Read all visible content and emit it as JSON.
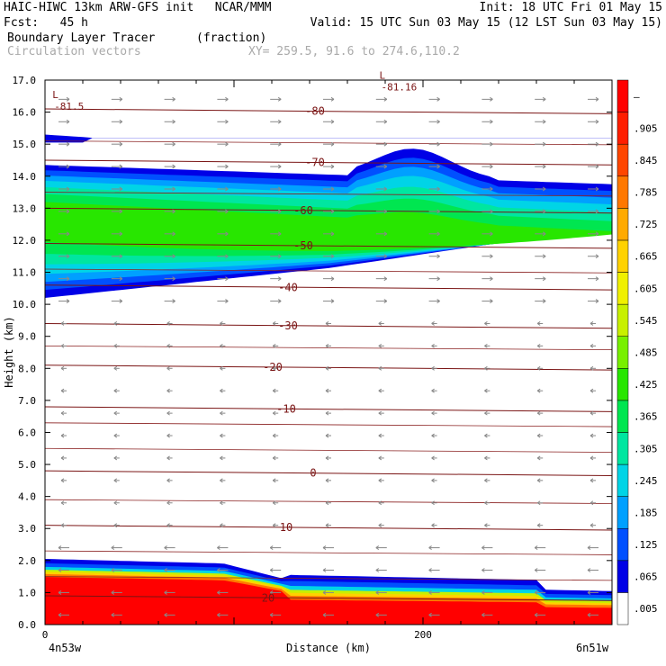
{
  "header": {
    "line1_left": "HAIC-HIWC 13km ARW-GFS init   NCAR/MMM",
    "line1_right": "Init: 18 UTC Fri 01 May 15",
    "line2_left": "Fcst:   45 h",
    "line2_right": "Valid: 15 UTC Sun 03 May 15 (12 LST Sun 03 May 15)",
    "field_title": "Boundary Layer Tracer",
    "field_units": "(fraction)",
    "vector_title": "Circulation vectors",
    "xsection_coords": "XY= 259.5, 91.6 to 274.6,110.2"
  },
  "chart_data": {
    "type": "heatmap",
    "title": "Boundary Layer Tracer",
    "xlabel": "Distance (km)",
    "ylabel": "Height (km)",
    "xlim": [
      0,
      300
    ],
    "ylim": [
      0,
      17
    ],
    "x_ticks": [
      {
        "value": 0,
        "label": "0"
      },
      {
        "value": 200,
        "label": "200"
      }
    ],
    "x_end_labels": {
      "left": "4n53w",
      "right": "6n51w"
    },
    "y_ticks": [
      "0.0",
      "1.0",
      "2.0",
      "3.0",
      "4.0",
      "5.0",
      "6.0",
      "7.0",
      "8.0",
      "9.0",
      "10.0",
      "11.0",
      "12.0",
      "13.0",
      "14.0",
      "15.0",
      "16.0",
      "17.0"
    ],
    "colorbar": {
      "labels": [
        ".005",
        ".065",
        ".125",
        ".185",
        ".245",
        ".305",
        ".365",
        ".425",
        ".485",
        ".545",
        ".605",
        ".665",
        ".725",
        ".785",
        ".845",
        ".905",
        "–"
      ],
      "colors": [
        "#ffffff",
        "#0000e6",
        "#0050ff",
        "#00a0ff",
        "#00d4e6",
        "#00e6a0",
        "#00e650",
        "#28e600",
        "#78f000",
        "#c8f000",
        "#f0f000",
        "#ffd200",
        "#ffaa00",
        "#ff7800",
        "#ff4600",
        "#ff1e00",
        "#ff0000"
      ]
    },
    "isotherms": [
      {
        "label": "-80",
        "z": 16.1
      },
      {
        "label": "-70",
        "z": 14.5
      },
      {
        "label": "-60",
        "z": 13.0
      },
      {
        "label": "-50",
        "z": 11.9
      },
      {
        "label": "-40",
        "z": 10.6
      },
      {
        "label": "-30",
        "z": 9.4
      },
      {
        "label": "-20",
        "z": 8.1
      },
      {
        "label": "-10",
        "z": 6.8
      },
      {
        "label": "0",
        "z": 4.8
      },
      {
        "label": "10",
        "z": 3.1
      },
      {
        "label": "20",
        "z": 0.9
      }
    ],
    "min_labels": [
      {
        "marker": "L",
        "value": "-81.5",
        "x": 2,
        "z": 16.1
      },
      {
        "marker": "L",
        "value": "-81.16",
        "x": 175,
        "z": 16.7
      }
    ]
  }
}
